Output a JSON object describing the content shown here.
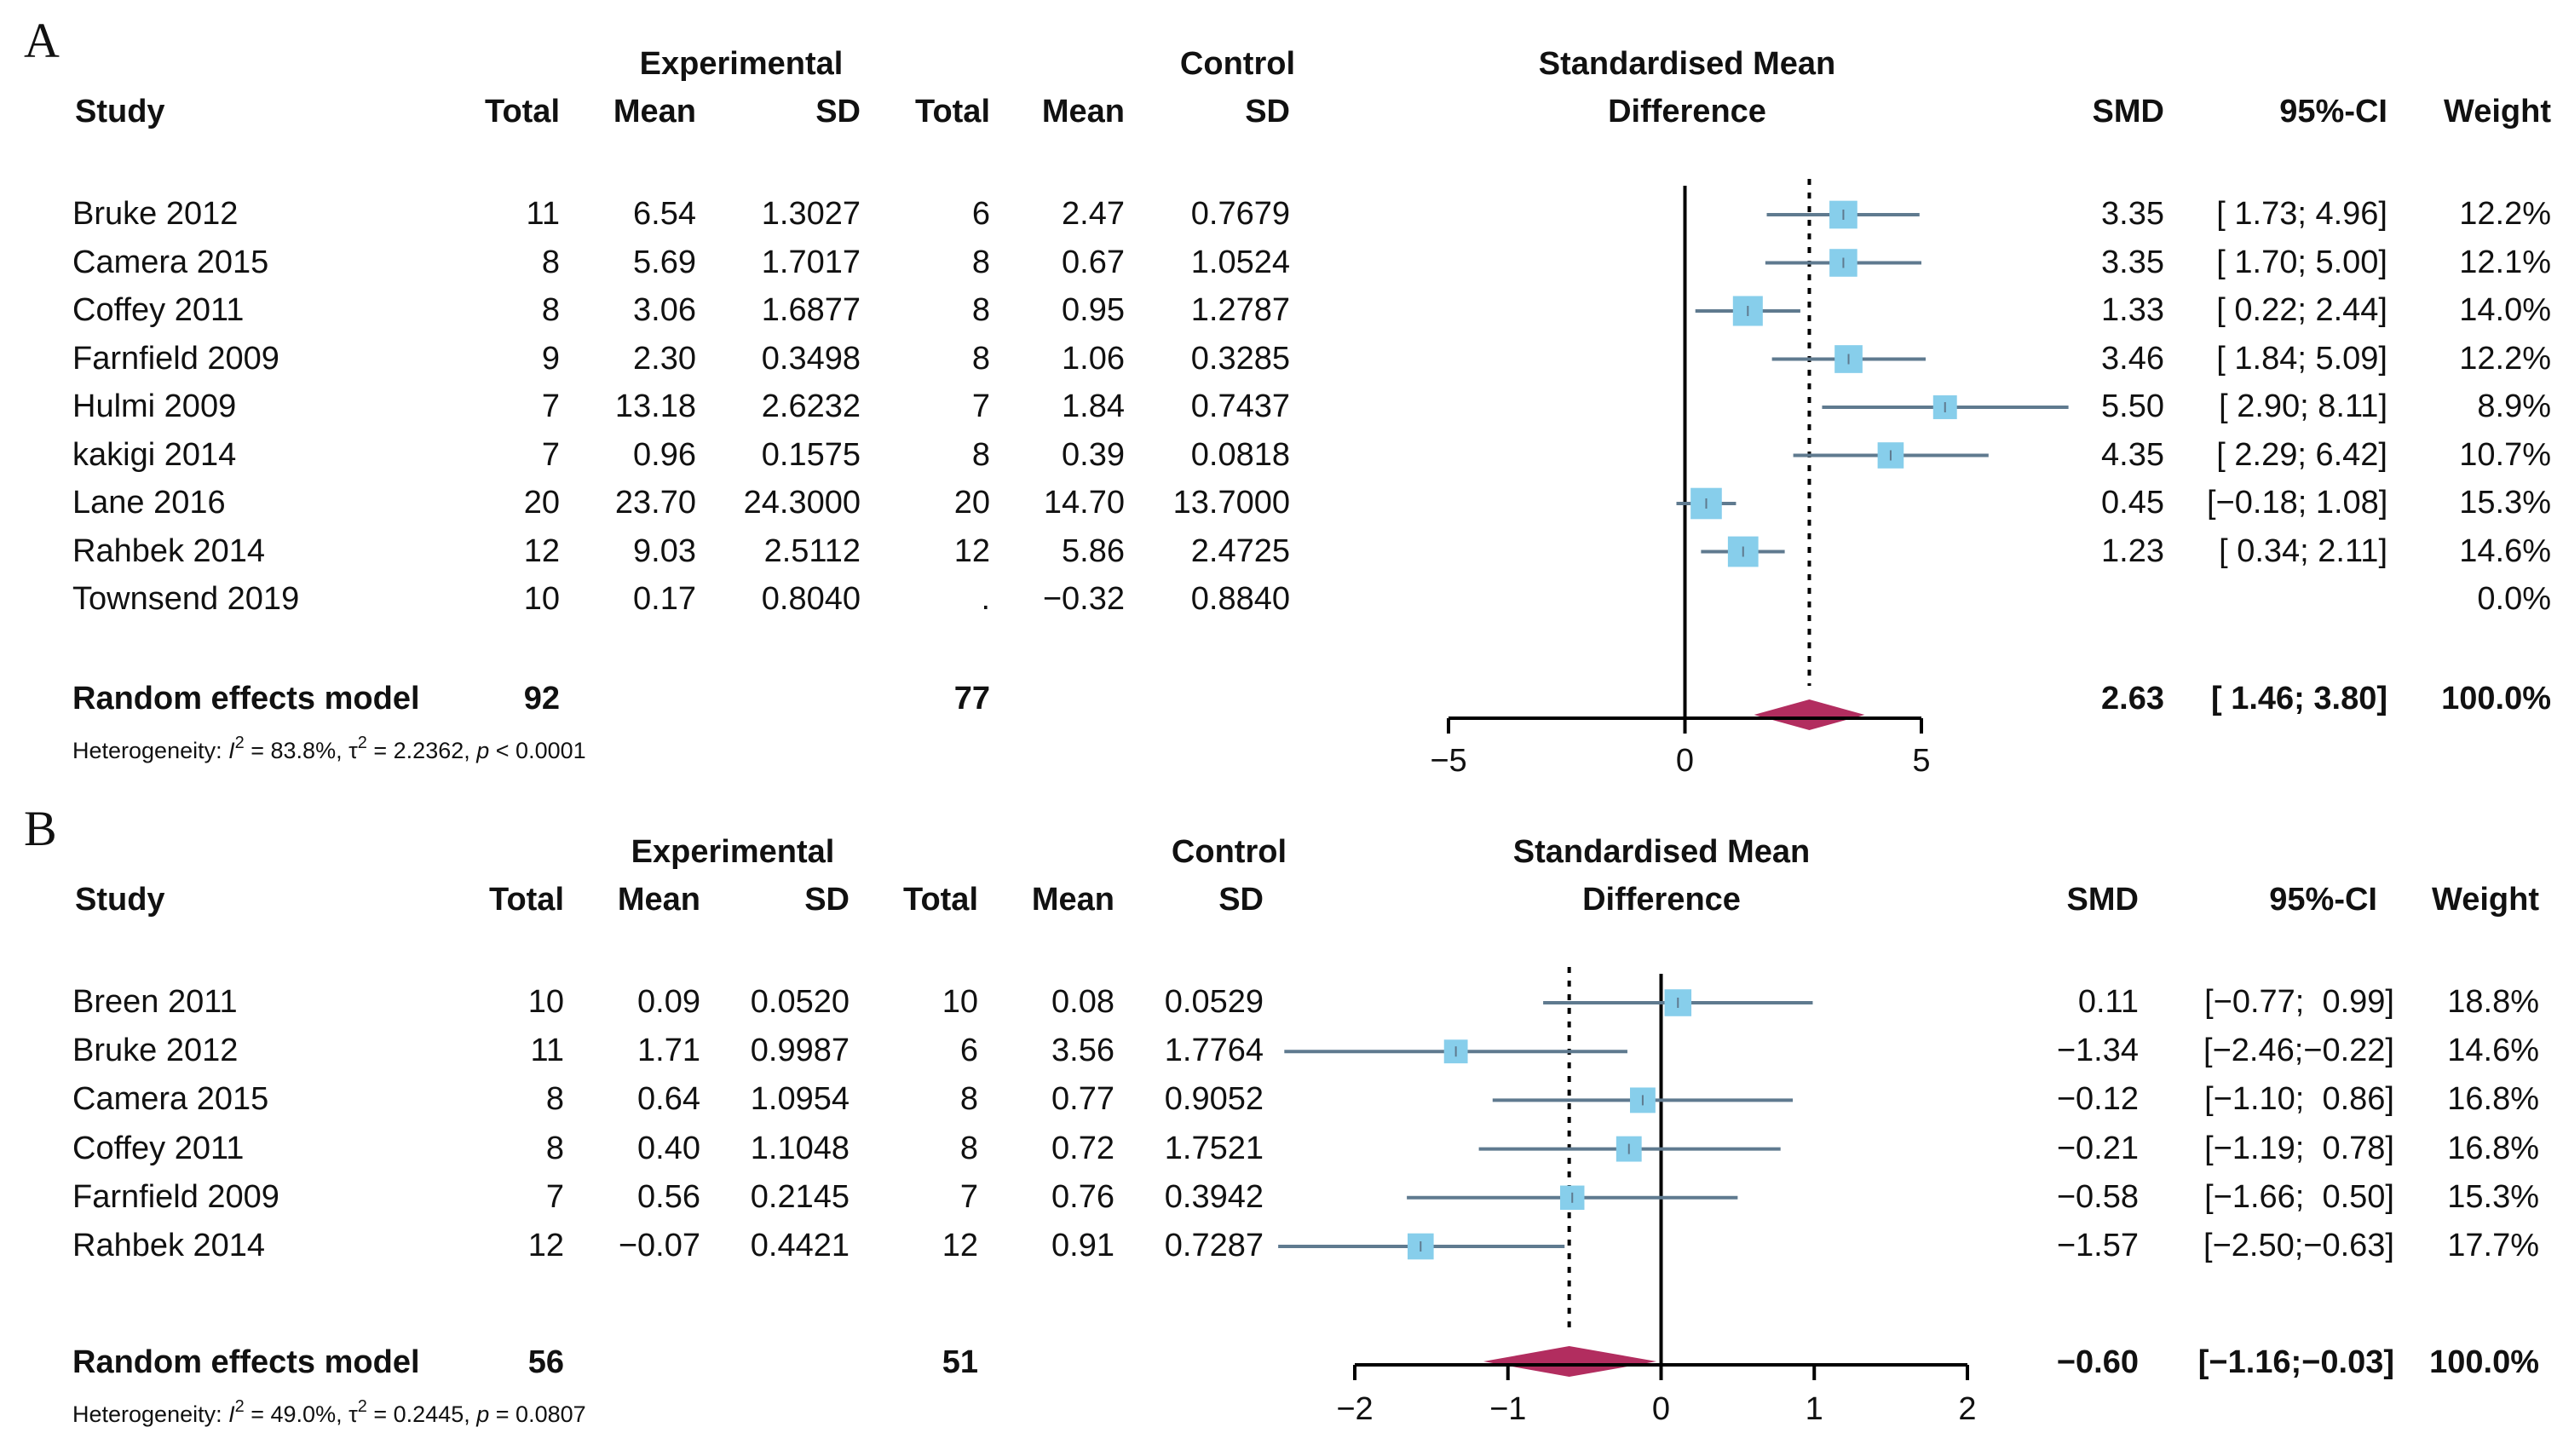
{
  "colors": {
    "box": "#87CEEB",
    "ci_line": "#5F7A8F",
    "diamond": "#B22D5F",
    "axis": "#000000"
  },
  "panels": [
    {
      "letter": "A",
      "headers": {
        "experimental": "Experimental",
        "control": "Control",
        "study": "Study",
        "total": "Total",
        "mean": "Mean",
        "sd": "SD",
        "smd_title_1": "Standardised Mean",
        "smd_title_2": "Difference",
        "smd": "SMD",
        "ci": "95%-CI",
        "weight": "Weight"
      },
      "rows": [
        {
          "study": "Bruke 2012",
          "e_total": "11",
          "e_mean": "6.54",
          "e_sd": "1.3027",
          "c_total": "6",
          "c_mean": "2.47",
          "c_sd": "0.7679",
          "smd": "3.35",
          "ci": "[ 1.73; 4.96]",
          "weight": "12.2%"
        },
        {
          "study": "Camera 2015",
          "e_total": "8",
          "e_mean": "5.69",
          "e_sd": "1.7017",
          "c_total": "8",
          "c_mean": "0.67",
          "c_sd": "1.0524",
          "smd": "3.35",
          "ci": "[ 1.70; 5.00]",
          "weight": "12.1%"
        },
        {
          "study": "Coffey 2011",
          "e_total": "8",
          "e_mean": "3.06",
          "e_sd": "1.6877",
          "c_total": "8",
          "c_mean": "0.95",
          "c_sd": "1.2787",
          "smd": "1.33",
          "ci": "[ 0.22; 2.44]",
          "weight": "14.0%"
        },
        {
          "study": "Farnfield 2009",
          "e_total": "9",
          "e_mean": "2.30",
          "e_sd": "0.3498",
          "c_total": "8",
          "c_mean": "1.06",
          "c_sd": "0.3285",
          "smd": "3.46",
          "ci": "[ 1.84; 5.09]",
          "weight": "12.2%"
        },
        {
          "study": "Hulmi 2009",
          "e_total": "7",
          "e_mean": "13.18",
          "e_sd": "2.6232",
          "c_total": "7",
          "c_mean": "1.84",
          "c_sd": "0.7437",
          "smd": "5.50",
          "ci": "[ 2.90; 8.11]",
          "weight": "8.9%"
        },
        {
          "study": "kakigi 2014",
          "e_total": "7",
          "e_mean": "0.96",
          "e_sd": "0.1575",
          "c_total": "8",
          "c_mean": "0.39",
          "c_sd": "0.0818",
          "smd": "4.35",
          "ci": "[ 2.29; 6.42]",
          "weight": "10.7%"
        },
        {
          "study": "Lane 2016",
          "e_total": "20",
          "e_mean": "23.70",
          "e_sd": "24.3000",
          "c_total": "20",
          "c_mean": "14.70",
          "c_sd": "13.7000",
          "smd": "0.45",
          "ci": "[−0.18; 1.08]",
          "weight": "15.3%"
        },
        {
          "study": "Rahbek 2014",
          "e_total": "12",
          "e_mean": "9.03",
          "e_sd": "2.5112",
          "c_total": "12",
          "c_mean": "5.86",
          "c_sd": "2.4725",
          "smd": "1.23",
          "ci": "[ 0.34; 2.11]",
          "weight": "14.6%"
        },
        {
          "study": "Townsend 2019",
          "e_total": "10",
          "e_mean": "0.17",
          "e_sd": "0.8040",
          "c_total": ".",
          "c_mean": "−0.32",
          "c_sd": "0.8840",
          "smd": "",
          "ci": "",
          "weight": "0.0%"
        }
      ],
      "pooled": {
        "label": "Random effects model",
        "e_total": "92",
        "c_total": "77",
        "smd": "2.63",
        "ci": "[ 1.46; 3.80]",
        "weight": "100.0%"
      },
      "heterogeneity": {
        "prefix": "Heterogeneity: ",
        "i2_symbol": "I",
        "i2_sup": "2",
        "i2_value": " = 83.8%, ",
        "tau_symbol": "τ",
        "tau_sup": "2",
        "tau_value": " = 2.2362, ",
        "p_symbol": "p",
        "p_value": " < 0.0001"
      },
      "axis_ticks": [
        "−5",
        "0",
        "5"
      ]
    },
    {
      "letter": "B",
      "headers": {
        "experimental": "Experimental",
        "control": "Control",
        "study": "Study",
        "total": "Total",
        "mean": "Mean",
        "sd": "SD",
        "smd_title_1": "Standardised Mean",
        "smd_title_2": "Difference",
        "smd": "SMD",
        "ci": "95%-CI",
        "weight": "Weight"
      },
      "rows": [
        {
          "study": "Breen 2011",
          "e_total": "10",
          "e_mean": "0.09",
          "e_sd": "0.0520",
          "c_total": "10",
          "c_mean": "0.08",
          "c_sd": "0.0529",
          "smd": "0.11",
          "ci": "[−0.77;  0.99]",
          "weight": "18.8%"
        },
        {
          "study": "Bruke 2012",
          "e_total": "11",
          "e_mean": "1.71",
          "e_sd": "0.9987",
          "c_total": "6",
          "c_mean": "3.56",
          "c_sd": "1.7764",
          "smd": "−1.34",
          "ci": "[−2.46;−0.22]",
          "weight": "14.6%"
        },
        {
          "study": "Camera 2015",
          "e_total": "8",
          "e_mean": "0.64",
          "e_sd": "1.0954",
          "c_total": "8",
          "c_mean": "0.77",
          "c_sd": "0.9052",
          "smd": "−0.12",
          "ci": "[−1.10;  0.86]",
          "weight": "16.8%"
        },
        {
          "study": "Coffey 2011",
          "e_total": "8",
          "e_mean": "0.40",
          "e_sd": "1.1048",
          "c_total": "8",
          "c_mean": "0.72",
          "c_sd": "1.7521",
          "smd": "−0.21",
          "ci": "[−1.19;  0.78]",
          "weight": "16.8%"
        },
        {
          "study": "Farnfield 2009",
          "e_total": "7",
          "e_mean": "0.56",
          "e_sd": "0.2145",
          "c_total": "7",
          "c_mean": "0.76",
          "c_sd": "0.3942",
          "smd": "−0.58",
          "ci": "[−1.66;  0.50]",
          "weight": "15.3%"
        },
        {
          "study": "Rahbek 2014",
          "e_total": "12",
          "e_mean": "−0.07",
          "e_sd": "0.4421",
          "c_total": "12",
          "c_mean": "0.91",
          "c_sd": "0.7287",
          "smd": "−1.57",
          "ci": "[−2.50;−0.63]",
          "weight": "17.7%"
        }
      ],
      "pooled": {
        "label": "Random effects model",
        "e_total": "56",
        "c_total": "51",
        "smd": "−0.60",
        "ci": "[−1.16;−0.03]",
        "weight": "100.0%"
      },
      "heterogeneity": {
        "prefix": "Heterogeneity: ",
        "i2_symbol": "I",
        "i2_sup": "2",
        "i2_value": " = 49.0%, ",
        "tau_symbol": "τ",
        "tau_sup": "2",
        "tau_value": " = 0.2445, ",
        "p_symbol": "p",
        "p_value": " = 0.0807"
      },
      "axis_ticks": [
        "−2",
        "−1",
        "0",
        "1",
        "2"
      ]
    }
  ],
  "chart_data": [
    {
      "type": "forest",
      "title": "Standardised Mean Difference",
      "xlim": [
        -5,
        5
      ],
      "xticks": [
        -5,
        0,
        5
      ],
      "studies": [
        {
          "name": "Bruke 2012",
          "smd": 3.35,
          "lower": 1.73,
          "upper": 4.96,
          "weight": 12.2
        },
        {
          "name": "Camera 2015",
          "smd": 3.35,
          "lower": 1.7,
          "upper": 5.0,
          "weight": 12.1
        },
        {
          "name": "Coffey 2011",
          "smd": 1.33,
          "lower": 0.22,
          "upper": 2.44,
          "weight": 14.0
        },
        {
          "name": "Farnfield 2009",
          "smd": 3.46,
          "lower": 1.84,
          "upper": 5.09,
          "weight": 12.2
        },
        {
          "name": "Hulmi 2009",
          "smd": 5.5,
          "lower": 2.9,
          "upper": 8.11,
          "weight": 8.9
        },
        {
          "name": "kakigi 2014",
          "smd": 4.35,
          "lower": 2.29,
          "upper": 6.42,
          "weight": 10.7
        },
        {
          "name": "Lane 2016",
          "smd": 0.45,
          "lower": -0.18,
          "upper": 1.08,
          "weight": 15.3
        },
        {
          "name": "Rahbek 2014",
          "smd": 1.23,
          "lower": 0.34,
          "upper": 2.11,
          "weight": 14.6
        },
        {
          "name": "Townsend 2019",
          "smd": null,
          "lower": null,
          "upper": null,
          "weight": 0.0
        }
      ],
      "pooled": {
        "smd": 2.63,
        "lower": 1.46,
        "upper": 3.8
      }
    },
    {
      "type": "forest",
      "title": "Standardised Mean Difference",
      "xlim": [
        -2,
        2
      ],
      "xticks": [
        -2,
        -1,
        0,
        1,
        2
      ],
      "studies": [
        {
          "name": "Breen 2011",
          "smd": 0.11,
          "lower": -0.77,
          "upper": 0.99,
          "weight": 18.8
        },
        {
          "name": "Bruke 2012",
          "smd": -1.34,
          "lower": -2.46,
          "upper": -0.22,
          "weight": 14.6
        },
        {
          "name": "Camera 2015",
          "smd": -0.12,
          "lower": -1.1,
          "upper": 0.86,
          "weight": 16.8
        },
        {
          "name": "Coffey 2011",
          "smd": -0.21,
          "lower": -1.19,
          "upper": 0.78,
          "weight": 16.8
        },
        {
          "name": "Farnfield 2009",
          "smd": -0.58,
          "lower": -1.66,
          "upper": 0.5,
          "weight": 15.3
        },
        {
          "name": "Rahbek 2014",
          "smd": -1.57,
          "lower": -2.5,
          "upper": -0.63,
          "weight": 17.7
        }
      ],
      "pooled": {
        "smd": -0.6,
        "lower": -1.16,
        "upper": -0.03
      }
    }
  ]
}
